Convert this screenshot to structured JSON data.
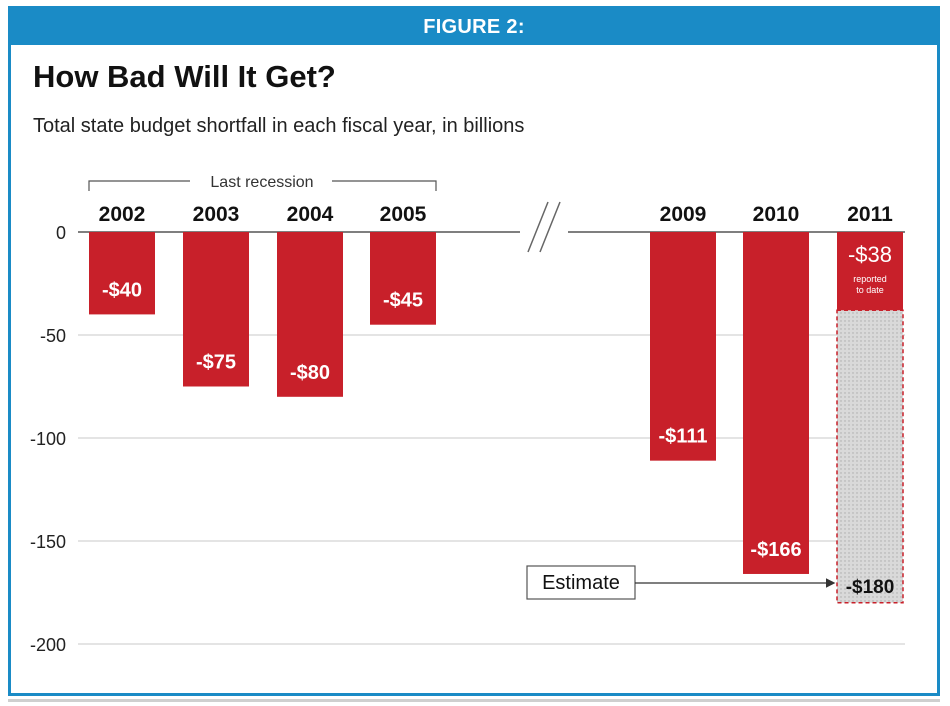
{
  "figure_label": "FIGURE 2:",
  "chart_data": {
    "type": "bar",
    "title": "How Bad Will It Get?",
    "subtitle": "Total state budget shortfall in each fiscal year, in billions",
    "categories": [
      "2002",
      "2003",
      "2004",
      "2005",
      "2009",
      "2010",
      "2011"
    ],
    "values": [
      -40,
      -75,
      -80,
      -45,
      -111,
      -166,
      -38
    ],
    "value_labels": [
      "-$40",
      "-$75",
      "-$80",
      "-$45",
      "-$111",
      "-$166",
      "-$38"
    ],
    "estimate": {
      "category": "2011",
      "value": -180,
      "label": "-$180",
      "note": "Estimate"
    },
    "reported_note": "reported to date",
    "bracket_label": "Last recession",
    "ylim": [
      -200,
      0
    ],
    "yticks": [
      0,
      -50,
      -100,
      -150,
      -200
    ],
    "ytick_labels": [
      "0",
      "-50",
      "-100",
      "-150",
      "-200"
    ],
    "axis_break_between": [
      "2005",
      "2009"
    ],
    "colors": {
      "bar": "#c8202a",
      "accent": "#1a8bc6",
      "estimate_fill": "#d9d9d9",
      "gridline": "#c9c9c9"
    },
    "grid": true,
    "legend": "none"
  }
}
